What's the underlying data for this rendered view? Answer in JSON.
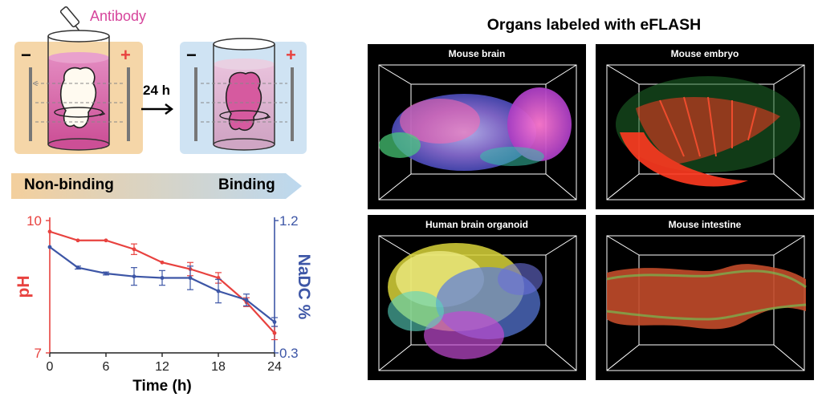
{
  "schematic": {
    "reagent_label": "Antibody",
    "time_label": "24 h",
    "minus_sign": "−",
    "plus_sign": "+"
  },
  "gradient": {
    "left_label": "Non-binding",
    "right_label": "Binding"
  },
  "colors": {
    "ph_series": "#e8423f",
    "nadc_series": "#3d56a6",
    "antibody_text": "#d6459c",
    "panel_bg": "#000000"
  },
  "chart_data": {
    "type": "line",
    "xlabel": "Time (h)",
    "x": [
      0,
      3,
      6,
      9,
      12,
      15,
      18,
      21,
      24
    ],
    "xticks": [
      "0",
      "6",
      "12",
      "18",
      "24"
    ],
    "xlim": [
      0,
      24
    ],
    "series": [
      {
        "name": "pH",
        "axis": "left",
        "values": [
          9.75,
          9.55,
          9.55,
          9.35,
          9.05,
          8.9,
          8.7,
          8.15,
          7.45
        ],
        "errors": [
          0.0,
          0.0,
          0.0,
          0.12,
          0.0,
          0.15,
          0.12,
          0.1,
          0.15
        ]
      },
      {
        "name": "NaDC %",
        "axis": "right",
        "values": [
          1.02,
          0.88,
          0.84,
          0.82,
          0.81,
          0.81,
          0.72,
          0.66,
          0.51
        ],
        "errors": [
          0.0,
          0.01,
          0.01,
          0.06,
          0.05,
          0.08,
          0.08,
          0.04,
          0.03
        ]
      }
    ],
    "left_axis": {
      "label": "pH",
      "ylim": [
        7,
        10
      ],
      "ticks": [
        "7",
        "10"
      ]
    },
    "right_axis": {
      "label": "NaDC %",
      "ylim": [
        0.3,
        1.2
      ],
      "ticks": [
        "0.3",
        "1.2"
      ]
    }
  },
  "right_panel": {
    "title": "Organs labeled with eFLASH",
    "panels": [
      {
        "title": "Mouse brain"
      },
      {
        "title": "Mouse embryo"
      },
      {
        "title": "Human brain organoid"
      },
      {
        "title": "Mouse intestine"
      }
    ]
  }
}
